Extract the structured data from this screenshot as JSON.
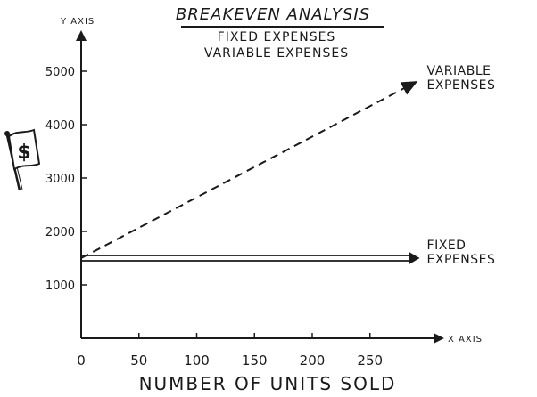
{
  "chart_data": {
    "type": "line",
    "title": "BREAKEVEN ANALYSIS",
    "subtitle_lines": [
      "FIXED EXPENSES",
      "VARIABLE EXPENSES"
    ],
    "xlabel": "NUMBER OF UNITS SOLD",
    "x_axis_tag": "X AXIS",
    "y_axis_tag": "Y AXIS",
    "xlim": [
      0,
      290
    ],
    "ylim": [
      0,
      5300
    ],
    "x_ticks": [
      0,
      50,
      100,
      150,
      200,
      250
    ],
    "x_tick_labels": [
      "0",
      "50",
      "100",
      "150",
      "200",
      "250"
    ],
    "y_ticks": [
      1000,
      2000,
      3000,
      4000,
      5000
    ],
    "y_tick_labels": [
      "1000",
      "2000",
      "3000",
      "4000",
      "5000"
    ],
    "grid": false,
    "series": [
      {
        "name": "VARIABLE EXPENSES",
        "label_lines": [
          "VARIABLE",
          "EXPENSES"
        ],
        "style": "dashed-arrow",
        "x": [
          0,
          290
        ],
        "y": [
          1500,
          4800
        ]
      },
      {
        "name": "FIXED EXPENSES",
        "label_lines": [
          "FIXED",
          "EXPENSES"
        ],
        "style": "double-line-arrow",
        "x": [
          0,
          290
        ],
        "y": [
          1500,
          1500
        ]
      }
    ],
    "colors": {
      "ink": "#1a1a1a",
      "background": "#ffffff"
    },
    "decoration_icon": "dollar-flag-icon",
    "decoration_text": "$"
  }
}
